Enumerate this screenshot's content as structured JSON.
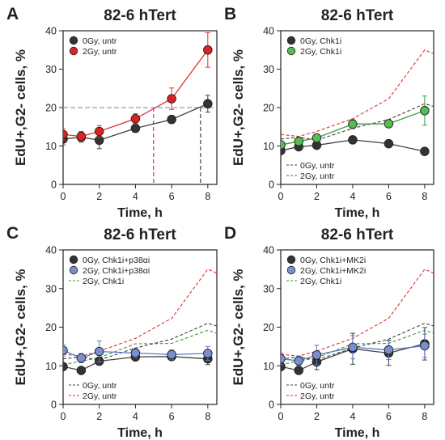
{
  "chart_data": [
    {
      "type": "line",
      "panel_label": "A",
      "title": "82-6 hTert",
      "xlabel": "Time, h",
      "ylabel": "EdU+,G2- cells, %",
      "xlim": [
        0,
        8.5
      ],
      "ylim": [
        0,
        40
      ],
      "xticks": [
        "0",
        "2",
        "4",
        "6",
        "8"
      ],
      "yticks": [
        "0",
        "10",
        "20",
        "30",
        "40"
      ],
      "legend_position": "top-left",
      "series": [
        {
          "name": "0Gy, untr",
          "style": "solid-markers",
          "color": "#404040",
          "marker": "#333333",
          "x": [
            0,
            1,
            2,
            4,
            6,
            8
          ],
          "y": [
            11.8,
            12.3,
            11.5,
            14.6,
            16.9,
            21.0
          ],
          "err": [
            1.5,
            1.3,
            2.2,
            1.0,
            1.0,
            2.2
          ]
        },
        {
          "name": "2Gy, untr",
          "style": "solid-markers",
          "color": "#e03030",
          "marker": "#dd2222",
          "x": [
            0,
            1,
            2,
            4,
            6,
            8
          ],
          "y": [
            13.0,
            12.5,
            13.8,
            17.1,
            22.3,
            35.0
          ],
          "err": [
            1.5,
            1.3,
            1.5,
            1.3,
            2.8,
            4.5
          ]
        }
      ],
      "annotations": {
        "hline": {
          "y": 20,
          "from_x": 0,
          "color": "#7aa3d0"
        },
        "vlines": [
          {
            "x": 5.0,
            "to_y": 20,
            "color": "#e03030"
          },
          {
            "x": 7.6,
            "to_y": 20,
            "color": "#404040"
          }
        ]
      }
    },
    {
      "type": "line",
      "panel_label": "B",
      "title": "82-6 hTert",
      "xlabel": "Time, h",
      "ylabel": "EdU+,G2- cells, %",
      "xlim": [
        0,
        8.5
      ],
      "ylim": [
        0,
        40
      ],
      "xticks": [
        "0",
        "2",
        "4",
        "6",
        "8"
      ],
      "yticks": [
        "0",
        "10",
        "20",
        "30",
        "40"
      ],
      "legend_position": "top-left",
      "legend2_position": "bottom-left",
      "series": [
        {
          "name": "0Gy, Chk1i",
          "style": "solid-markers",
          "color": "#404040",
          "marker": "#333333",
          "x": [
            0,
            1,
            2,
            4,
            6,
            8
          ],
          "y": [
            8.8,
            9.8,
            10.2,
            11.6,
            10.6,
            8.6
          ],
          "err": [
            0.8,
            0.8,
            0.8,
            0.6,
            0.8,
            0.8
          ]
        },
        {
          "name": "2Gy, Chk1i",
          "style": "solid-markers",
          "color": "#3a9a3a",
          "marker": "#55bb55",
          "x": [
            0,
            1,
            2,
            4,
            6,
            8
          ],
          "y": [
            10.3,
            11.2,
            12.1,
            15.7,
            15.8,
            19.2
          ],
          "err": [
            1.0,
            1.0,
            1.0,
            1.2,
            1.0,
            3.8
          ]
        },
        {
          "name": "0Gy, untr",
          "style": "dashed",
          "color": "#404040",
          "x": [
            0,
            1,
            2,
            4,
            6,
            8,
            8.5
          ],
          "y": [
            11.8,
            12.3,
            11.5,
            14.6,
            16.9,
            21.0,
            20.3
          ]
        },
        {
          "name": "2Gy, untr",
          "style": "dashed",
          "color": "#e03030",
          "x": [
            0,
            1,
            2,
            4,
            6,
            8,
            8.5
          ],
          "y": [
            13.0,
            12.5,
            13.8,
            17.1,
            22.3,
            35.0,
            34.0
          ]
        }
      ]
    },
    {
      "type": "line",
      "panel_label": "C",
      "title": "82-6 hTert",
      "xlabel": "Time, h",
      "ylabel": "EdU+,G2- cells, %",
      "xlim": [
        0,
        8.5
      ],
      "ylim": [
        0,
        40
      ],
      "xticks": [
        "0",
        "2",
        "4",
        "6",
        "8"
      ],
      "yticks": [
        "0",
        "10",
        "20",
        "30",
        "40"
      ],
      "legend_position": "top-left",
      "legend2_position": "bottom-left",
      "series": [
        {
          "name": "0Gy, Chk1i+p38αi",
          "style": "solid-markers",
          "color": "#404040",
          "marker": "#333333",
          "x": [
            0,
            1,
            2,
            4,
            6,
            8
          ],
          "y": [
            9.8,
            8.8,
            11.2,
            12.3,
            12.4,
            11.8
          ],
          "err": [
            0.8,
            0.8,
            1.0,
            0.8,
            0.8,
            1.5
          ]
        },
        {
          "name": "2Gy, Chk1i+p38αi",
          "style": "solid-markers",
          "color": "#5a7ac0",
          "marker": "#7b8fd0",
          "x": [
            0,
            1,
            2,
            4,
            6,
            8
          ],
          "y": [
            14.0,
            12.0,
            13.7,
            13.3,
            12.9,
            13.2
          ],
          "err": [
            1.5,
            1.2,
            2.7,
            1.2,
            1.2,
            1.8
          ]
        },
        {
          "name": "2Gy, Chk1i",
          "style": "dashed",
          "color": "#3a9a3a",
          "x": [
            0,
            1,
            2,
            4,
            6,
            8,
            8.5
          ],
          "y": [
            10.3,
            11.2,
            12.1,
            15.7,
            15.8,
            19.2,
            18.4
          ]
        },
        {
          "name": "0Gy, untr",
          "style": "dashed",
          "color": "#404040",
          "x": [
            0,
            1,
            2,
            4,
            6,
            8,
            8.5
          ],
          "y": [
            11.8,
            12.3,
            11.5,
            14.6,
            16.9,
            21.0,
            20.3
          ]
        },
        {
          "name": "2Gy, untr",
          "style": "dashed",
          "color": "#e03030",
          "x": [
            0,
            1,
            2,
            4,
            6,
            8,
            8.5
          ],
          "y": [
            13.0,
            12.5,
            13.8,
            17.1,
            22.3,
            35.0,
            34.0
          ]
        }
      ]
    },
    {
      "type": "line",
      "panel_label": "D",
      "title": "82-6 hTert",
      "xlabel": "Time, h",
      "ylabel": "EdU+,G2- cells, %",
      "xlim": [
        0,
        8.5
      ],
      "ylim": [
        0,
        40
      ],
      "xticks": [
        "0",
        "2",
        "4",
        "6",
        "8"
      ],
      "yticks": [
        "0",
        "10",
        "20",
        "30",
        "40"
      ],
      "legend_position": "top-left",
      "legend2_position": "bottom-left",
      "series": [
        {
          "name": "0Gy, Chk1i+MK2i",
          "style": "solid-markers",
          "color": "#404040",
          "marker": "#333333",
          "x": [
            0,
            1,
            2,
            4,
            6,
            8
          ],
          "y": [
            9.8,
            8.8,
            11.0,
            14.4,
            13.3,
            15.7
          ],
          "err": [
            1.0,
            0.8,
            2.0,
            4.0,
            3.2,
            4.2
          ]
        },
        {
          "name": "2Gy, Chk1i+MK2i",
          "style": "solid-markers",
          "color": "#5a7ac0",
          "marker": "#7b8fd0",
          "x": [
            0,
            1,
            2,
            4,
            6,
            8
          ],
          "y": [
            11.8,
            11.3,
            12.8,
            14.8,
            14.1,
            15.2
          ],
          "err": [
            1.5,
            1.2,
            2.5,
            3.0,
            2.5,
            3.0
          ]
        },
        {
          "name": "2Gy, Chk1i",
          "style": "dashed",
          "color": "#3a9a3a",
          "x": [
            0,
            1,
            2,
            4,
            6,
            8,
            8.5
          ],
          "y": [
            10.3,
            11.2,
            12.1,
            15.7,
            15.8,
            19.2,
            18.4
          ]
        },
        {
          "name": "0Gy, untr",
          "style": "dashed",
          "color": "#404040",
          "x": [
            0,
            1,
            2,
            4,
            6,
            8,
            8.5
          ],
          "y": [
            11.8,
            12.3,
            11.5,
            14.6,
            16.9,
            21.0,
            20.3
          ]
        },
        {
          "name": "2Gy, untr",
          "style": "dashed",
          "color": "#e03030",
          "x": [
            0,
            1,
            2,
            4,
            6,
            8,
            8.5
          ],
          "y": [
            13.0,
            12.5,
            13.8,
            17.1,
            22.3,
            35.0,
            34.0
          ]
        }
      ]
    }
  ]
}
